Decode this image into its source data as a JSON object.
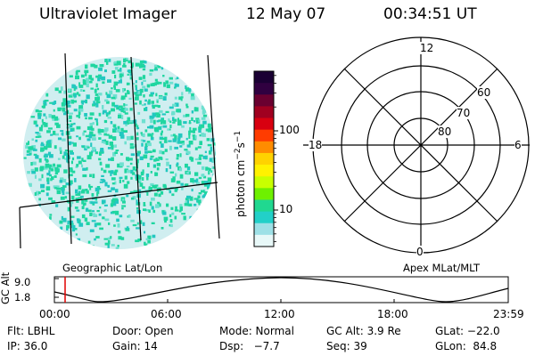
{
  "header": {
    "instrument": "Ultraviolet Imager",
    "date": "12 May 07",
    "time": "00:34:51 UT"
  },
  "left_panel": {
    "caption": "Geographic Lat/Lon",
    "image_type": "earth-disk-uv-image",
    "background_color": "#d0eef0",
    "speckle_color": "#1fd6a0"
  },
  "colorbar": {
    "unit_main": "photon cm",
    "unit_exp1": "−2",
    "unit_mid": "s",
    "unit_exp2": "−1",
    "ticks": [
      "100",
      "10"
    ],
    "scale": "log",
    "colors_top_to_bottom": [
      "#1a0033",
      "#300040",
      "#6a0030",
      "#a00020",
      "#d80010",
      "#ff3c00",
      "#ff8c00",
      "#ffd200",
      "#fff200",
      "#c8ff00",
      "#6ef000",
      "#20d890",
      "#22d0c8",
      "#9ee0e6",
      "#e8f8f8"
    ]
  },
  "polar_plot": {
    "caption": "Apex MLat/MLT",
    "mlt_labels": [
      "12",
      "18",
      "6",
      "0"
    ],
    "mlat_labels": [
      "60",
      "70",
      "80"
    ]
  },
  "altitude_plot": {
    "ylabel": "GC Alt",
    "yticks": [
      "9.0",
      "1.8"
    ],
    "xticks": [
      "00:00",
      "06:00",
      "12:00",
      "18:00",
      "23:59"
    ],
    "marker_color": "#e00000",
    "marker_time": "00:34"
  },
  "status": {
    "row1": {
      "flt": "Flt: LBHL",
      "door": "Door: Open",
      "mode": "Mode: Normal",
      "gcalt": "GC Alt: 3.9 Re",
      "glat": "GLat: −22.0"
    },
    "row2": {
      "ip": "IP: 36.0",
      "gain": "Gain: 14",
      "dsp": "Dsp:   −7.7",
      "seq": "Seq: 39",
      "glon": "GLon:  84.8"
    }
  }
}
